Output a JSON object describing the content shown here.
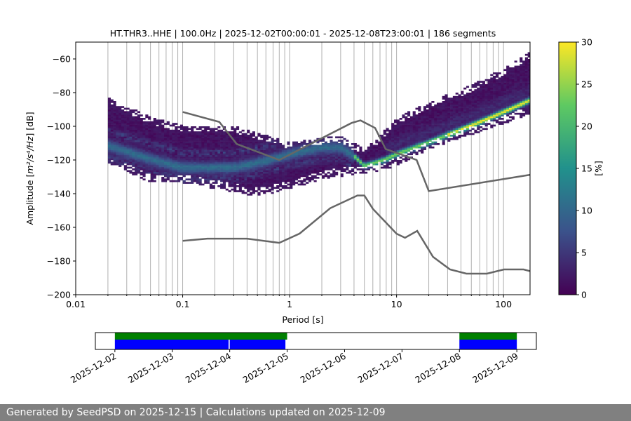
{
  "chart_data": {
    "type": "heatmap",
    "title": "HT.THR3..HHE | 100.0Hz | 2025-12-02T00:00:01 - 2025-12-08T23:00:01 | 186 segments",
    "xlabel": "Period [s]",
    "ylabel_prefix": "Amplitude [",
    "ylabel_math": "m²/s⁴/Hz",
    "ylabel_suffix": "] [dB]",
    "xscale": "log",
    "xlim": [
      0.01,
      177
    ],
    "ylim": [
      -200,
      -50
    ],
    "xticks": [
      {
        "v": 0.01,
        "label": "0.01"
      },
      {
        "v": 0.1,
        "label": "0.1"
      },
      {
        "v": 1,
        "label": "1"
      },
      {
        "v": 10,
        "label": "10"
      },
      {
        "v": 100,
        "label": "100"
      }
    ],
    "yticks": [
      {
        "v": -60,
        "label": "−60"
      },
      {
        "v": -80,
        "label": "−80"
      },
      {
        "v": -100,
        "label": "−100"
      },
      {
        "v": -120,
        "label": "−120"
      },
      {
        "v": -140,
        "label": "−140"
      },
      {
        "v": -160,
        "label": "−160"
      },
      {
        "v": -180,
        "label": "−180"
      },
      {
        "v": -200,
        "label": "−200"
      }
    ],
    "grid": "vertical",
    "colorbar": {
      "label": "[%]",
      "range": [
        0,
        30
      ],
      "ticks": [
        {
          "v": 0,
          "label": "0"
        },
        {
          "v": 5,
          "label": "5"
        },
        {
          "v": 10,
          "label": "10"
        },
        {
          "v": 15,
          "label": "15"
        },
        {
          "v": 20,
          "label": "20"
        },
        {
          "v": 25,
          "label": "25"
        },
        {
          "v": 30,
          "label": "30"
        }
      ],
      "colormap": [
        "#440154",
        "#3b528b",
        "#21918c",
        "#5ec962",
        "#fde725"
      ]
    },
    "density": {
      "period_range": [
        0.02,
        177
      ],
      "mode": [
        [
          0.02,
          -112
        ],
        [
          0.05,
          -120
        ],
        [
          0.1,
          -125
        ],
        [
          0.3,
          -125
        ],
        [
          0.6,
          -121
        ],
        [
          1,
          -117
        ],
        [
          2,
          -113
        ],
        [
          3,
          -113
        ],
        [
          4,
          -118
        ],
        [
          5,
          -124
        ],
        [
          8,
          -120
        ],
        [
          10,
          -117
        ],
        [
          20,
          -110
        ],
        [
          50,
          -100
        ],
        [
          100,
          -92
        ],
        [
          177,
          -85
        ]
      ],
      "upper": [
        [
          0.02,
          -83
        ],
        [
          0.05,
          -95
        ],
        [
          0.1,
          -100
        ],
        [
          0.3,
          -100
        ],
        [
          1,
          -110
        ],
        [
          3,
          -106
        ],
        [
          5,
          -114
        ],
        [
          8,
          -102
        ],
        [
          10,
          -95
        ],
        [
          20,
          -86
        ],
        [
          50,
          -76
        ],
        [
          100,
          -66
        ],
        [
          177,
          -56
        ]
      ],
      "lower": [
        [
          0.02,
          -121
        ],
        [
          0.05,
          -133
        ],
        [
          0.1,
          -133
        ],
        [
          0.5,
          -141
        ],
        [
          1,
          -137
        ],
        [
          2,
          -131
        ],
        [
          4,
          -128
        ],
        [
          5,
          -128
        ],
        [
          10,
          -123
        ],
        [
          20,
          -113
        ],
        [
          100,
          -98
        ],
        [
          177,
          -92
        ]
      ]
    },
    "noise_models": [
      {
        "name": "NHNM",
        "color": "#666666",
        "points": [
          [
            0.1,
            -91.5
          ],
          [
            0.22,
            -97.4
          ],
          [
            0.32,
            -110.5
          ],
          [
            0.8,
            -120
          ],
          [
            3.8,
            -98
          ],
          [
            4.6,
            -96.5
          ],
          [
            6.3,
            -101
          ],
          [
            7.9,
            -113.5
          ],
          [
            15.4,
            -120
          ],
          [
            20,
            -138.5
          ],
          [
            177,
            -128.8
          ]
        ]
      },
      {
        "name": "NLNM",
        "color": "#666666",
        "points": [
          [
            0.1,
            -168
          ],
          [
            0.17,
            -166.7
          ],
          [
            0.4,
            -166.7
          ],
          [
            0.8,
            -169.2
          ],
          [
            1.24,
            -163.7
          ],
          [
            2.4,
            -148.6
          ],
          [
            4.3,
            -141.1
          ],
          [
            5,
            -141.1
          ],
          [
            6,
            -149
          ],
          [
            10,
            -163.8
          ],
          [
            12,
            -166.2
          ],
          [
            15.6,
            -162.1
          ],
          [
            21.9,
            -177.5
          ],
          [
            31.6,
            -185
          ],
          [
            45,
            -187.5
          ],
          [
            70,
            -187.5
          ],
          [
            101,
            -185
          ],
          [
            154,
            -185
          ],
          [
            177,
            -186
          ]
        ]
      }
    ],
    "coverage": {
      "day_range": [
        -0.34,
        7.34
      ],
      "date_ticks": [
        "2025-12-02",
        "2025-12-03",
        "2025-12-04",
        "2025-12-05",
        "2025-12-06",
        "2025-12-07",
        "2025-12-08",
        "2025-12-09"
      ],
      "processed": [
        {
          "start": 0,
          "end": 3.0
        },
        {
          "start": 6.0,
          "end": 7.0
        }
      ],
      "data": [
        {
          "start": 0,
          "end": 1.98
        },
        {
          "start": 2.0,
          "end": 2.97
        },
        {
          "start": 6.0,
          "end": 7.0
        }
      ],
      "processed_color": "#008000",
      "data_color": "#0000ff"
    }
  },
  "footer": {
    "text": "Generated by SeedPSD on 2025-12-15 | Calculations updated on 2025-12-09"
  }
}
